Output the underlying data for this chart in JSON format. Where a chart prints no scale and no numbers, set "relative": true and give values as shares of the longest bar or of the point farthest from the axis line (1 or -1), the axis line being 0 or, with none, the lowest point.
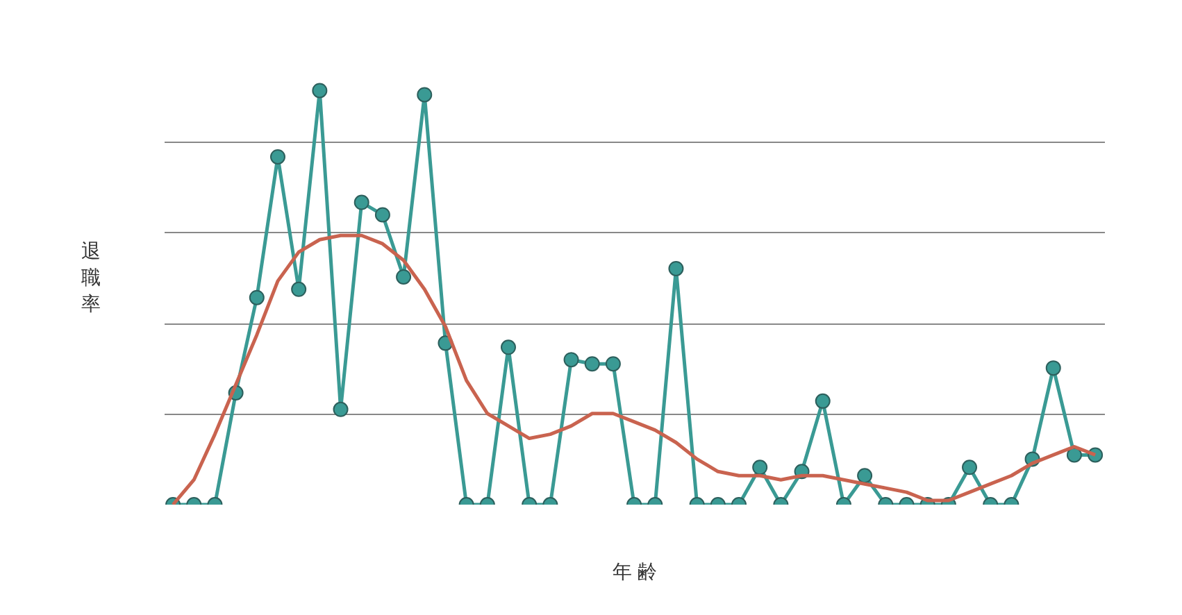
{
  "chart_data": {
    "type": "line",
    "xlabel": "年 齢",
    "ylabel": "退職率",
    "relative": true,
    "grid": "y",
    "marker": "circle",
    "categories": [
      null,
      null,
      null,
      null,
      null,
      null,
      null,
      null,
      null,
      null,
      null,
      null,
      null,
      null,
      null,
      null,
      null,
      null,
      null,
      null,
      null,
      null,
      null,
      null,
      null,
      null,
      null,
      null,
      null,
      null,
      null,
      null,
      null,
      null,
      null,
      null,
      null,
      null,
      null,
      null,
      null,
      null,
      null,
      null,
      null
    ],
    "series": [
      {
        "color": "#3a9a94",
        "values": [
          0,
          0,
          0,
          0.27,
          0.5,
          0.84,
          0.52,
          1,
          0.23,
          0.73,
          0.7,
          0.55,
          0.99,
          0.39,
          0,
          0,
          0.38,
          0,
          0,
          0.35,
          0.34,
          0.34,
          0,
          0,
          0.57,
          0,
          0,
          0,
          0.09,
          0,
          0.08,
          0.25,
          0,
          0.07,
          0,
          0,
          0,
          0,
          0.09,
          0,
          0,
          0.11,
          0.33,
          0.12,
          0.12
        ]
      },
      {
        "color": "#c9634f",
        "marker": "none",
        "values": [
          0,
          0.06,
          0.17,
          0.29,
          0.41,
          0.54,
          0.61,
          0.64,
          0.65,
          0.65,
          0.63,
          0.59,
          0.52,
          0.43,
          0.3,
          0.22,
          0.19,
          0.16,
          0.17,
          0.19,
          0.22,
          0.22,
          0.2,
          0.18,
          0.15,
          0.11,
          0.08,
          0.07,
          0.07,
          0.06,
          0.07,
          0.07,
          0.06,
          0.05,
          0.04,
          0.03,
          0.01,
          0.01,
          0.03,
          0.05,
          0.07,
          0.1,
          0.12,
          0.14,
          0.12
        ]
      }
    ]
  }
}
